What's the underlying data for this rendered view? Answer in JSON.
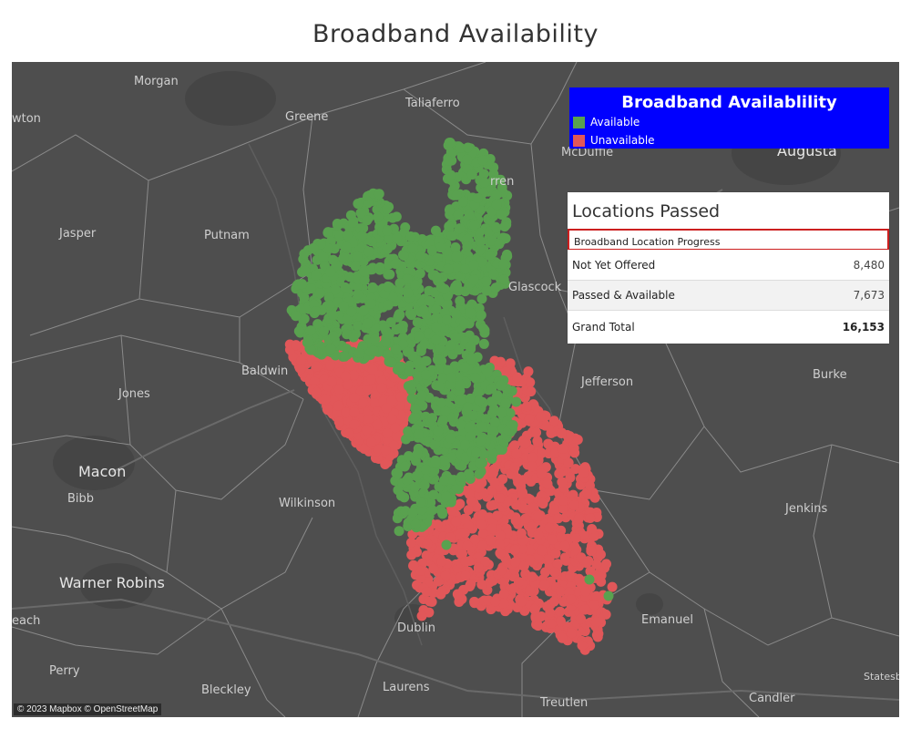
{
  "title": "Broadband Availability",
  "attribution": "© 2023 Mapbox © OpenStreetMap",
  "legend": {
    "title": "Broadband Availablility",
    "items": [
      {
        "label": "Available",
        "color": "#59a14f"
      },
      {
        "label": "Unavailable",
        "color": "#e15759"
      }
    ],
    "background": "#0000ff"
  },
  "locations": {
    "title": "Locations Passed",
    "header": "Broadband Location Progress",
    "rows": [
      {
        "label": "Not Yet Offered",
        "value": "8,480"
      },
      {
        "label": "Passed & Available",
        "value": "7,673"
      },
      {
        "label": "Grand Total",
        "value": "16,153"
      }
    ]
  },
  "map_labels": {
    "morgan": "Morgan",
    "newton": "wton",
    "greene": "Greene",
    "taliaferro": "Taliaferro",
    "mcduffie": "McDuffie",
    "augusta": "Augusta",
    "warren": "rren",
    "jasper": "Jasper",
    "putnam": "Putnam",
    "glascock": "Glascock",
    "baldwin": "Baldwin",
    "jefferson": "Jefferson",
    "burke": "Burke",
    "jones": "Jones",
    "macon": "Macon",
    "bibb": "Bibb",
    "wilkinson": "Wilkinson",
    "jenkins": "Jenkins",
    "warner_robins": "Warner Robins",
    "emanuel": "Emanuel",
    "peach": "each",
    "dublin": "Dublin",
    "perry": "Perry",
    "bleckley": "Bleckley",
    "laurens": "Laurens",
    "treutlen": "Treutlen",
    "candler": "Candler",
    "statesboro": "Statesb"
  },
  "colors": {
    "map_bg": "#4e4e4e",
    "available": "#59a14f",
    "unavailable": "#e15759"
  }
}
